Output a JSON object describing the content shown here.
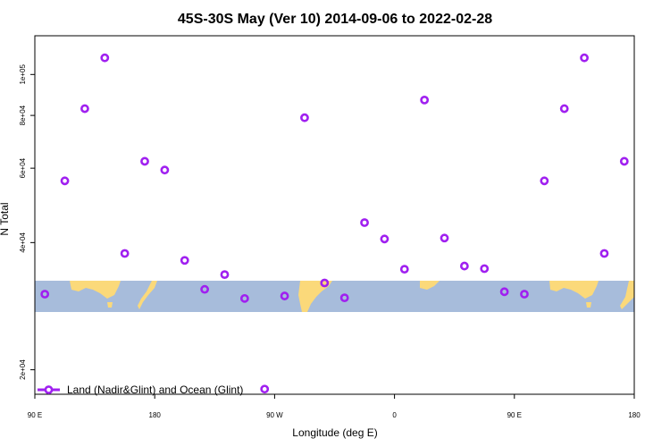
{
  "chart_data": {
    "type": "scatter",
    "title": "45S-30S May (Ver 10)   2014-09-06 to 2022-02-28",
    "xlabel": "Longitude (deg E)",
    "ylabel": "N Total",
    "x_ticks": [
      {
        "value": 90,
        "label": "90 E"
      },
      {
        "value": 180,
        "label": "180"
      },
      {
        "value": 270,
        "label": "90 W"
      },
      {
        "value": 360,
        "label": "0"
      },
      {
        "value": 450,
        "label": "90 E"
      },
      {
        "value": 540,
        "label": "180"
      }
    ],
    "xlim": [
      90,
      540
    ],
    "y_scale": "log",
    "y_ticks": [
      {
        "value": 20000,
        "label": "2e+04"
      },
      {
        "value": 40000,
        "label": "4e+04"
      },
      {
        "value": 60000,
        "label": "6e+04"
      },
      {
        "value": 80000,
        "label": "8e+04"
      },
      {
        "value": 100000,
        "label": "1e+05"
      }
    ],
    "ylim": [
      17500,
      123500
    ],
    "grid": false,
    "legend_position": "bottom-left",
    "series": [
      {
        "name": "Land (Nadir&Glint) and Ocean (Glint)",
        "color": "#a020f0",
        "points": [
          {
            "x": 97.5,
            "y": 30200
          },
          {
            "x": 112.5,
            "y": 56000
          },
          {
            "x": 127.5,
            "y": 83000
          },
          {
            "x": 142.5,
            "y": 109500
          },
          {
            "x": 157.5,
            "y": 37700
          },
          {
            "x": 172.5,
            "y": 62300
          },
          {
            "x": 187.5,
            "y": 59400
          },
          {
            "x": 202.5,
            "y": 36300
          },
          {
            "x": 217.5,
            "y": 31000
          },
          {
            "x": 232.5,
            "y": 33600
          },
          {
            "x": 247.5,
            "y": 29500
          },
          {
            "x": 262.5,
            "y": 18000
          },
          {
            "x": 277.5,
            "y": 29900
          },
          {
            "x": 292.5,
            "y": 79000
          },
          {
            "x": 307.5,
            "y": 32100
          },
          {
            "x": 322.5,
            "y": 29600
          },
          {
            "x": 337.5,
            "y": 44600
          },
          {
            "x": 352.5,
            "y": 40800
          },
          {
            "x": 367.5,
            "y": 34600
          },
          {
            "x": 382.5,
            "y": 87000
          },
          {
            "x": 397.5,
            "y": 41000
          },
          {
            "x": 412.5,
            "y": 35200
          },
          {
            "x": 427.5,
            "y": 34700
          },
          {
            "x": 442.5,
            "y": 30600
          },
          {
            "x": 457.5,
            "y": 30200
          },
          {
            "x": 472.5,
            "y": 56000
          },
          {
            "x": 487.5,
            "y": 83000
          },
          {
            "x": 502.5,
            "y": 109500
          },
          {
            "x": 517.5,
            "y": 37700
          },
          {
            "x": 532.5,
            "y": 62300
          }
        ]
      }
    ],
    "background_map": {
      "ocean_color": "#a7bcdb",
      "land_color": "#fbd97a"
    }
  }
}
